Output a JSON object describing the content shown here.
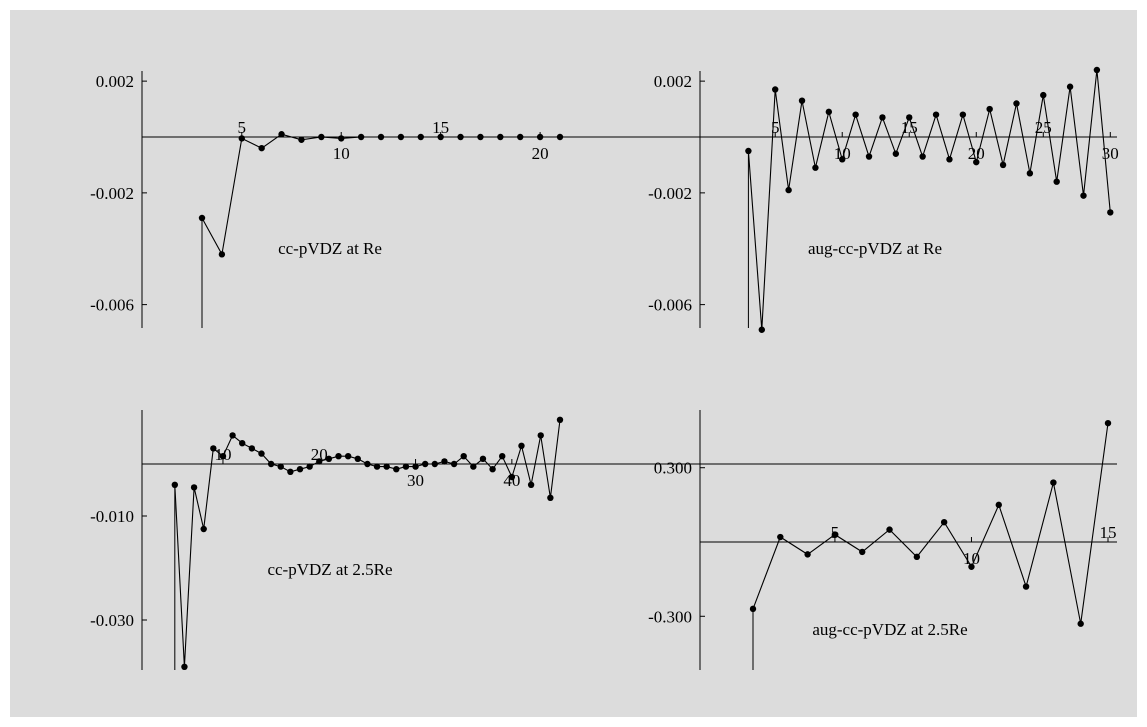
{
  "chart_data": [
    {
      "type": "line",
      "title": "cc-pVDZ at Re",
      "xlim": [
        3,
        21
      ],
      "ylim": [
        -0.007,
        0.0022
      ],
      "xticks": [
        5,
        10,
        15,
        20
      ],
      "yticks": [
        0.002,
        -0.002,
        -0.006
      ],
      "ytick_labels": [
        "0.002",
        "-0.002",
        "-0.006"
      ],
      "series": [
        {
          "x": [
            3,
            4,
            5,
            6,
            7,
            8,
            9,
            10,
            11,
            12,
            13,
            14,
            15,
            16,
            17,
            18,
            19,
            20,
            21
          ],
          "y": [
            -0.0029,
            -0.0042,
            -5e-05,
            -0.0004,
            0.0001,
            -0.0001,
            0.0,
            -5e-05,
            0.0,
            0.0,
            0.0,
            0.0,
            0.0,
            0.0,
            0.0,
            0.0,
            0.0,
            0.0,
            0.0
          ]
        }
      ]
    },
    {
      "type": "line",
      "title": "aug-cc-pVDZ at Re",
      "xlim": [
        2,
        30.5
      ],
      "ylim": [
        -0.007,
        0.0022
      ],
      "xticks": [
        5,
        10,
        15,
        20,
        25,
        30
      ],
      "yticks": [
        0.002,
        -0.002,
        -0.006
      ],
      "ytick_labels": [
        "0.002",
        "-0.002",
        "-0.006"
      ],
      "series": [
        {
          "x": [
            3,
            4,
            5,
            6,
            7,
            8,
            9,
            10,
            11,
            12,
            13,
            14,
            15,
            16,
            17,
            18,
            19,
            20,
            21,
            22,
            23,
            24,
            25,
            26,
            27,
            28,
            29,
            30
          ],
          "y": [
            -0.0005,
            -0.0069,
            0.0017,
            -0.0019,
            0.0013,
            -0.0011,
            0.0009,
            -0.0008,
            0.0008,
            -0.0007,
            0.0007,
            -0.0006,
            0.0007,
            -0.0007,
            0.0008,
            -0.0008,
            0.0008,
            -0.0009,
            0.001,
            -0.001,
            0.0012,
            -0.0013,
            0.0015,
            -0.0016,
            0.0018,
            -0.0021,
            0.0024,
            -0.0027
          ]
        }
      ]
    },
    {
      "type": "line",
      "title": "cc-pVDZ at 2.5Re",
      "xlim": [
        4.5,
        45
      ],
      "ylim": [
        -0.04,
        0.01
      ],
      "xticks": [
        10,
        20,
        30,
        40
      ],
      "yticks": [
        -0.01,
        -0.03
      ],
      "ytick_labels": [
        "-0.010",
        "-0.030"
      ],
      "series": [
        {
          "x": [
            5,
            6,
            7,
            8,
            9,
            10,
            11,
            12,
            13,
            14,
            15,
            16,
            17,
            18,
            19,
            20,
            21,
            22,
            23,
            24,
            25,
            26,
            27,
            28,
            29,
            30,
            31,
            32,
            33,
            34,
            35,
            36,
            37,
            38,
            39,
            40,
            41,
            42,
            43,
            44,
            45
          ],
          "y": [
            -0.004,
            -0.039,
            -0.0045,
            -0.0125,
            0.003,
            0.0015,
            0.0055,
            0.004,
            0.003,
            0.002,
            0.0,
            -0.0005,
            -0.0015,
            -0.001,
            -0.0005,
            0.0005,
            0.001,
            0.0015,
            0.0015,
            0.001,
            0.0,
            -0.0005,
            -0.0005,
            -0.001,
            -0.0005,
            -0.0005,
            0.0,
            0.0,
            0.0005,
            0.0,
            0.0015,
            -0.0005,
            0.001,
            -0.001,
            0.0015,
            -0.0025,
            0.0035,
            -0.004,
            0.0055,
            -0.0065,
            0.0085
          ]
        }
      ]
    },
    {
      "type": "line",
      "title": "aug-cc-pVDZ at 2.5Re",
      "xlim": [
        2,
        15
      ],
      "ylim": [
        -0.55,
        0.5
      ],
      "xticks": [
        5,
        10,
        15
      ],
      "yticks": [
        0.3,
        -0.3
      ],
      "ytick_labels": [
        "0.300",
        "-0.300"
      ],
      "series": [
        {
          "x": [
            2,
            3,
            4,
            5,
            6,
            7,
            8,
            9,
            10,
            11,
            12,
            13,
            14,
            15
          ],
          "y": [
            -0.27,
            0.02,
            -0.05,
            0.03,
            -0.04,
            0.05,
            -0.06,
            0.08,
            -0.1,
            0.15,
            -0.18,
            0.24,
            -0.33,
            0.48
          ]
        }
      ]
    }
  ]
}
